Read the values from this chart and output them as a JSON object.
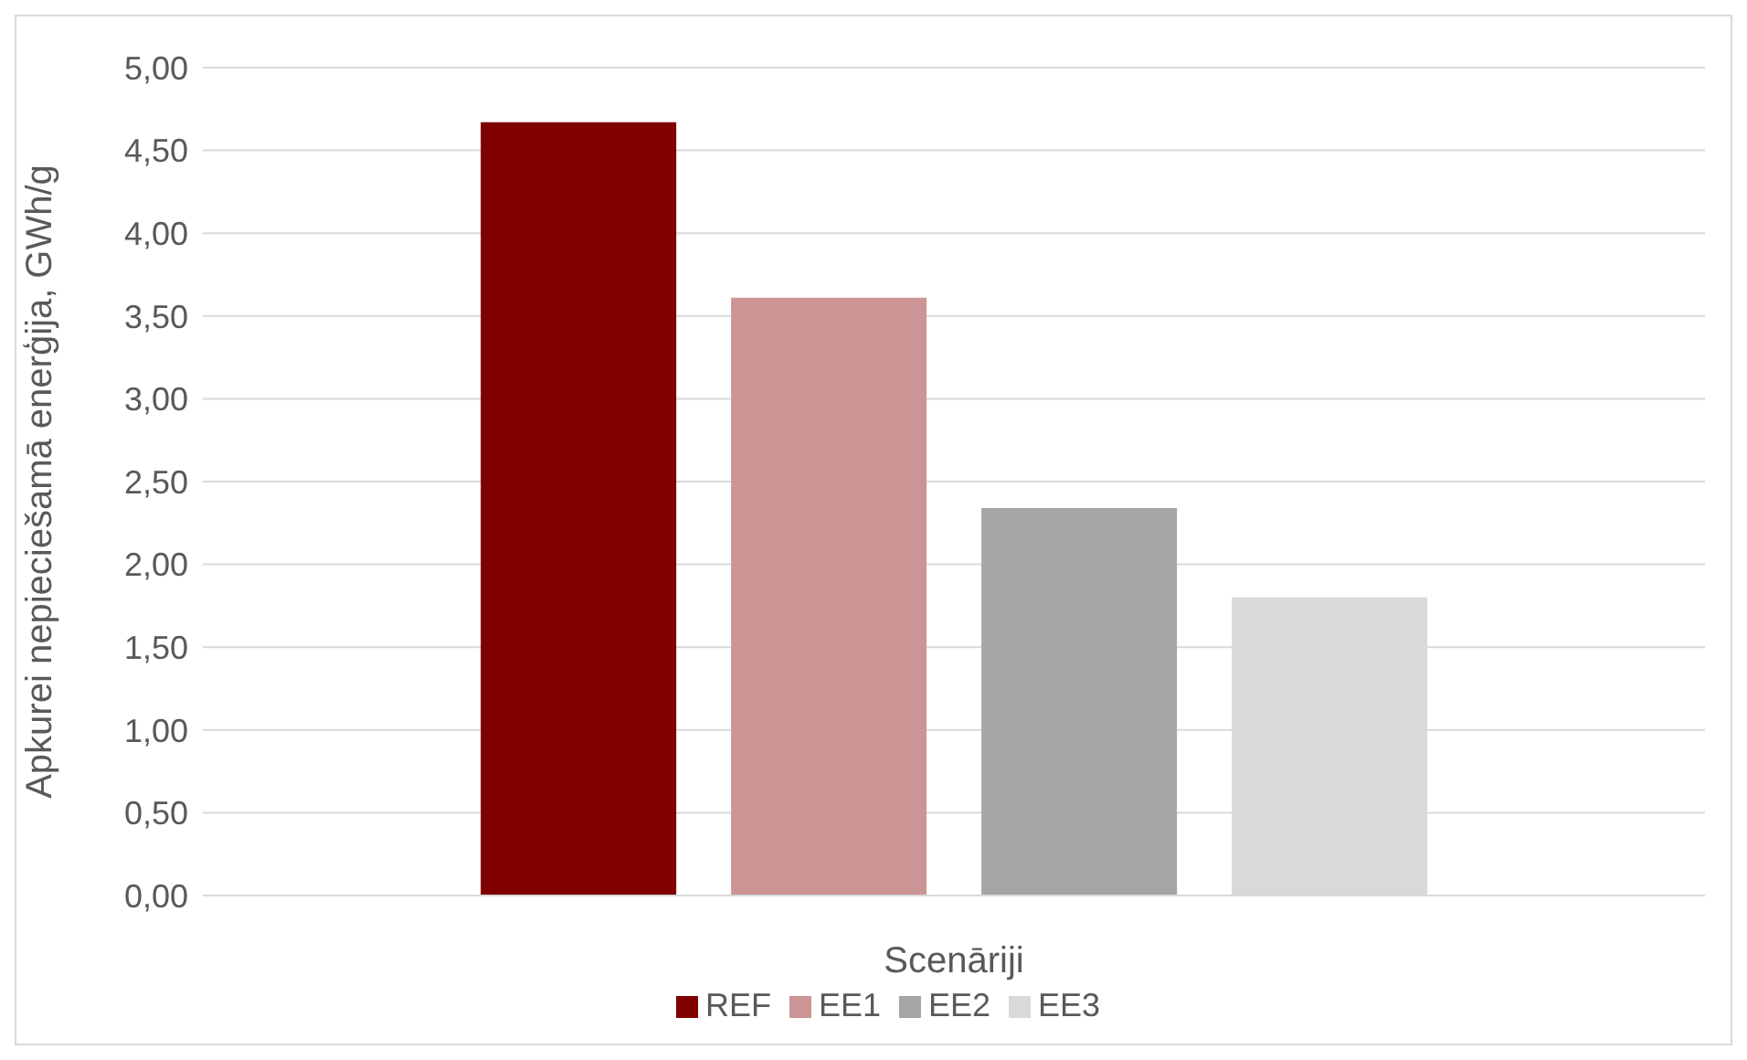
{
  "chart_data": {
    "type": "bar",
    "xlabel": "Scenāriji",
    "ylabel": "Apkurei nepieciešamā enerģija, GWh/g",
    "categories": [
      null
    ],
    "series": [
      {
        "name": "REF",
        "color": "#800000",
        "values": [
          4.67
        ]
      },
      {
        "name": "EE1",
        "color": "#cc9494",
        "values": [
          3.61
        ]
      },
      {
        "name": "EE2",
        "color": "#a5a5a5",
        "values": [
          2.34
        ]
      },
      {
        "name": "EE3",
        "color": "#d9d9d9",
        "values": [
          1.8
        ]
      }
    ],
    "ylim": [
      0,
      5
    ],
    "yticks": [
      {
        "value": 0,
        "label": "0,00"
      },
      {
        "value": 0.5,
        "label": "0,50"
      },
      {
        "value": 1,
        "label": "1,00"
      },
      {
        "value": 1.5,
        "label": "1,50"
      },
      {
        "value": 2,
        "label": "2,00"
      },
      {
        "value": 2.5,
        "label": "2,50"
      },
      {
        "value": 3,
        "label": "3,00"
      },
      {
        "value": 3.5,
        "label": "3,50"
      },
      {
        "value": 4,
        "label": "4,00"
      },
      {
        "value": 4.5,
        "label": "4,50"
      },
      {
        "value": 5,
        "label": "5,00"
      }
    ],
    "grid": "y",
    "legend": "bottom"
  }
}
